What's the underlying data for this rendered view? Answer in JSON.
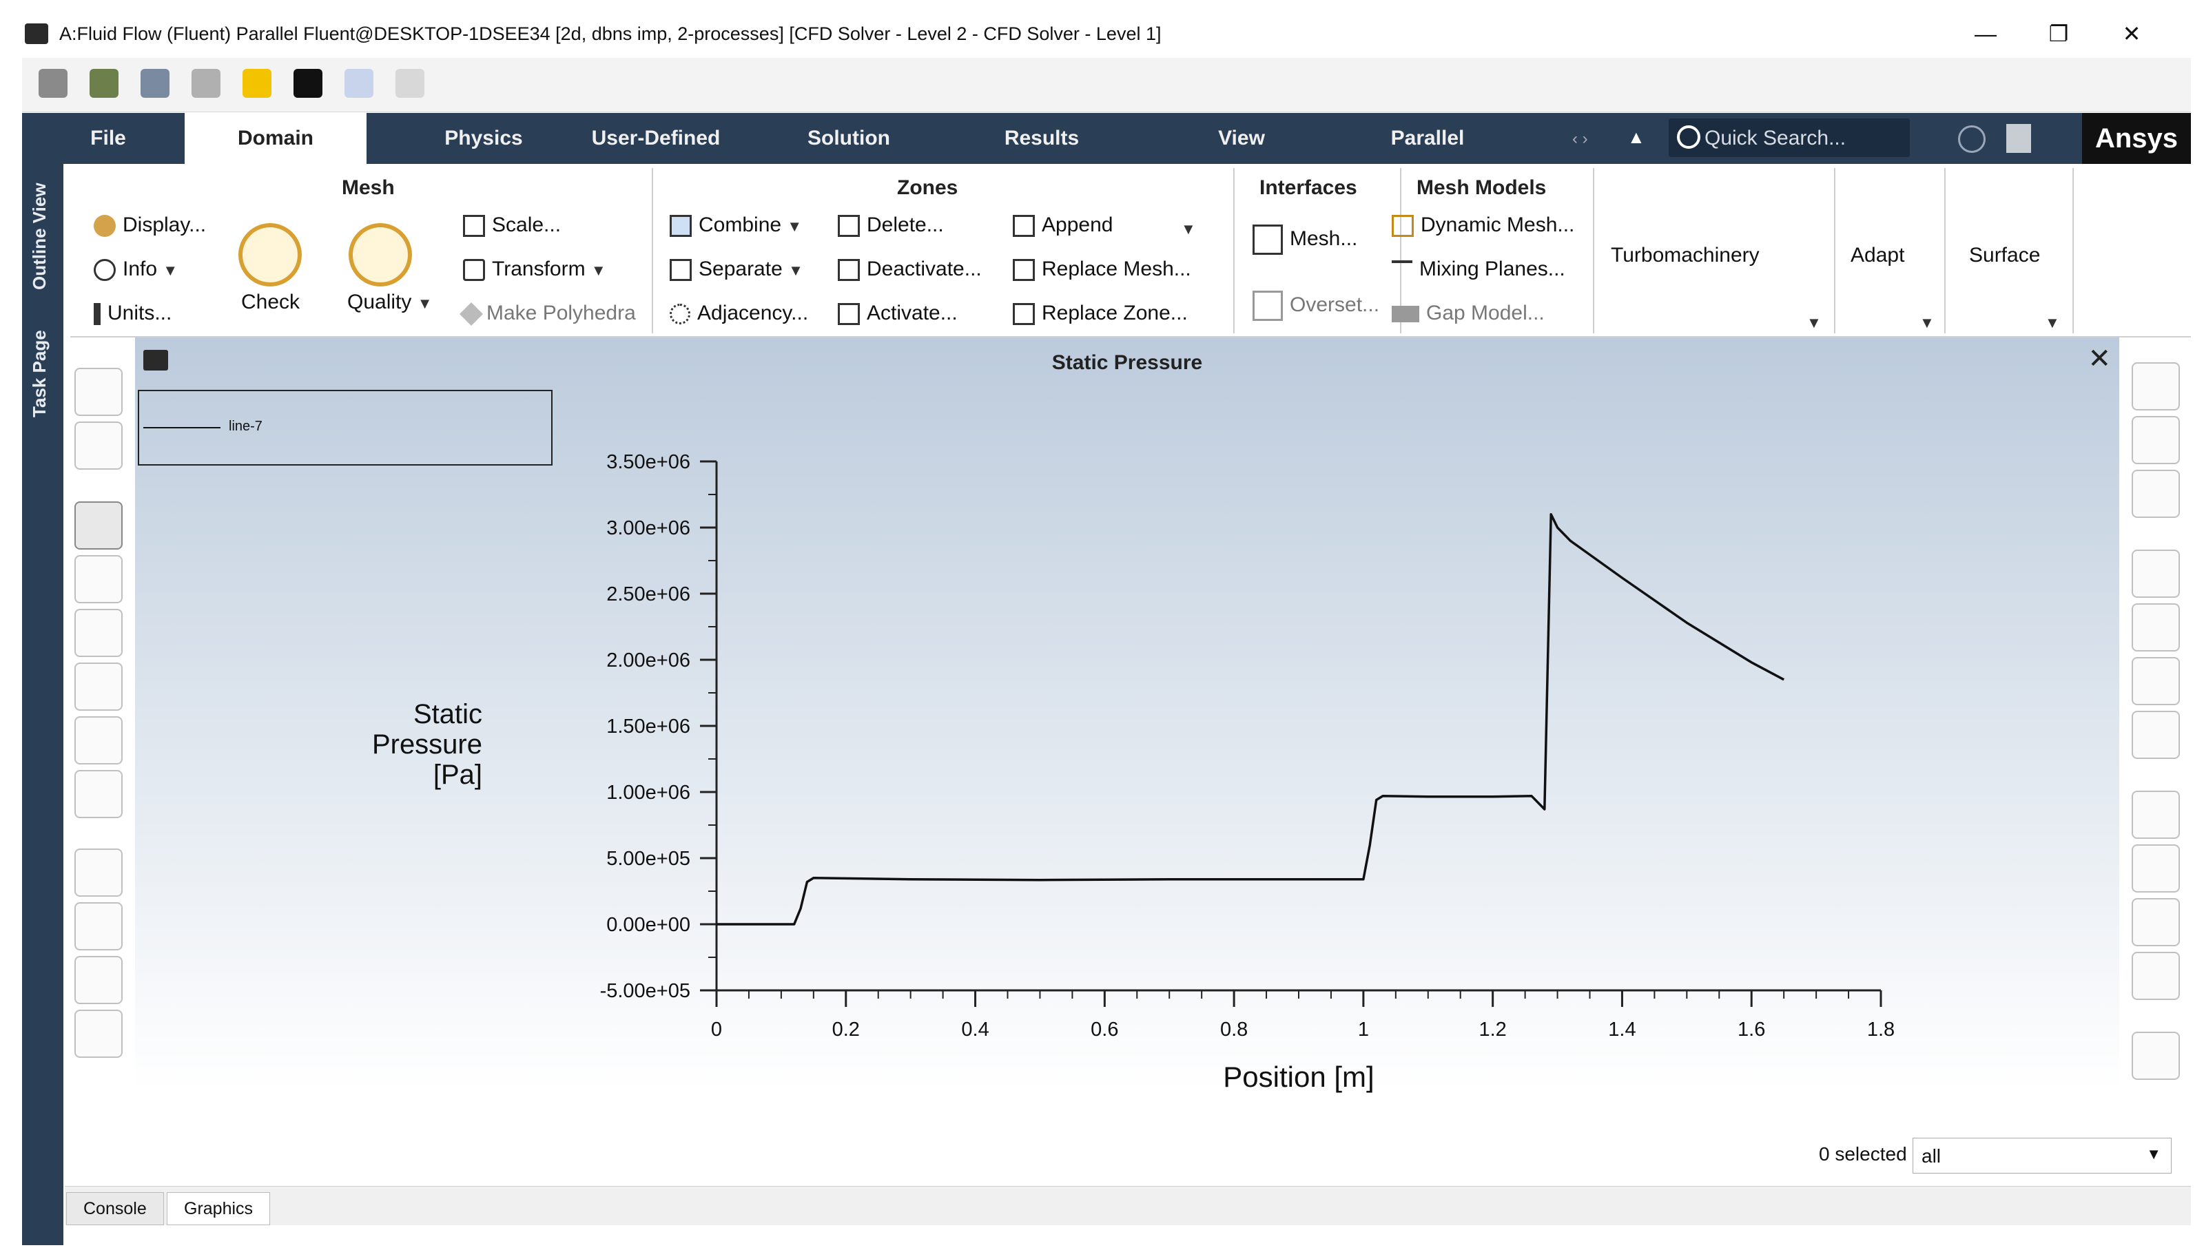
{
  "window": {
    "title": "A:Fluid Flow (Fluent) Parallel Fluent@DESKTOP-1DSEE34  [2d, dbns imp, 2-processes] [CFD Solver - Level 2 - CFD Solver - Level 1]",
    "minimize": "—",
    "maximize": "❐",
    "close": "✕"
  },
  "ribbon_tabs": [
    {
      "label": "File"
    },
    {
      "label": "Domain"
    },
    {
      "label": "Physics"
    },
    {
      "label": "User-Defined"
    },
    {
      "label": "Solution"
    },
    {
      "label": "Results"
    },
    {
      "label": "View"
    },
    {
      "label": "Parallel"
    }
  ],
  "search": {
    "placeholder": "Quick Search..."
  },
  "brand": {
    "logo_text": "Ansys"
  },
  "ribbon": {
    "mesh": {
      "title": "Mesh",
      "display": "Display...",
      "info": "Info",
      "units": "Units...",
      "check": "Check",
      "quality": "Quality",
      "scale": "Scale...",
      "transform": "Transform",
      "make_polyhedra": "Make Polyhedra"
    },
    "zones": {
      "title": "Zones",
      "combine": "Combine",
      "separate": "Separate",
      "adjacency": "Adjacency...",
      "delete": "Delete...",
      "deactivate": "Deactivate...",
      "activate": "Activate...",
      "append": "Append",
      "replace_mesh": "Replace Mesh...",
      "replace_zone": "Replace Zone..."
    },
    "interfaces": {
      "title": "Interfaces",
      "mesh": "Mesh...",
      "overset": "Overset..."
    },
    "mesh_models": {
      "title": "Mesh Models",
      "dynamic_mesh": "Dynamic Mesh...",
      "mixing_planes": "Mixing Planes...",
      "gap_model": "Gap Model..."
    },
    "turbomachinery": "Turbomachinery",
    "adapt": "Adapt",
    "surface": "Surface"
  },
  "side_tabs": {
    "outline": "Outline View",
    "task": "Task Page"
  },
  "graphics": {
    "title": "Static Pressure",
    "close": "✕"
  },
  "status": {
    "selected": "0 selected",
    "filter_value": "all"
  },
  "bottom_tabs": [
    {
      "label": "Console"
    },
    {
      "label": "Graphics"
    }
  ],
  "colors": {
    "tabbar": "#2a3e56",
    "plot_line": "#111111",
    "bg_top": "#bccbdc"
  },
  "chart_data": {
    "type": "line",
    "title": "Static Pressure",
    "xlabel": "Position [m]",
    "ylabel": "Static Pressure [Pa]",
    "ylabel_lines": [
      "Static",
      "Pressure",
      "[Pa]"
    ],
    "xlim": [
      0,
      1.8
    ],
    "ylim": [
      -500000,
      3500000
    ],
    "xticks": [
      0,
      0.2,
      0.4,
      0.6,
      0.8,
      1,
      1.2,
      1.4,
      1.6,
      1.8
    ],
    "xtick_labels": [
      "0",
      "0.2",
      "0.4",
      "0.6",
      "0.8",
      "1",
      "1.2",
      "1.4",
      "1.6",
      "1.8"
    ],
    "yticks": [
      -500000,
      0,
      500000,
      1000000,
      1500000,
      2000000,
      2500000,
      3000000,
      3500000
    ],
    "ytick_labels": [
      "-5.00e+05",
      "0.00e+00",
      "5.00e+05",
      "1.00e+06",
      "1.50e+06",
      "2.00e+06",
      "2.50e+06",
      "3.00e+06",
      "3.50e+06"
    ],
    "grid": false,
    "legend": "top-left",
    "series": [
      {
        "name": "line-7",
        "x": [
          0,
          0.12,
          0.13,
          0.14,
          0.15,
          0.3,
          0.5,
          0.7,
          0.9,
          1.0,
          1.01,
          1.02,
          1.03,
          1.1,
          1.2,
          1.26,
          1.28,
          1.29,
          1.3,
          1.32,
          1.4,
          1.5,
          1.6,
          1.65
        ],
        "y": [
          0,
          0,
          120000,
          320000,
          350000,
          340000,
          335000,
          340000,
          340000,
          340000,
          600000,
          940000,
          970000,
          965000,
          965000,
          970000,
          870000,
          3100000,
          3000000,
          2900000,
          2620000,
          2280000,
          1980000,
          1850000
        ]
      }
    ]
  }
}
